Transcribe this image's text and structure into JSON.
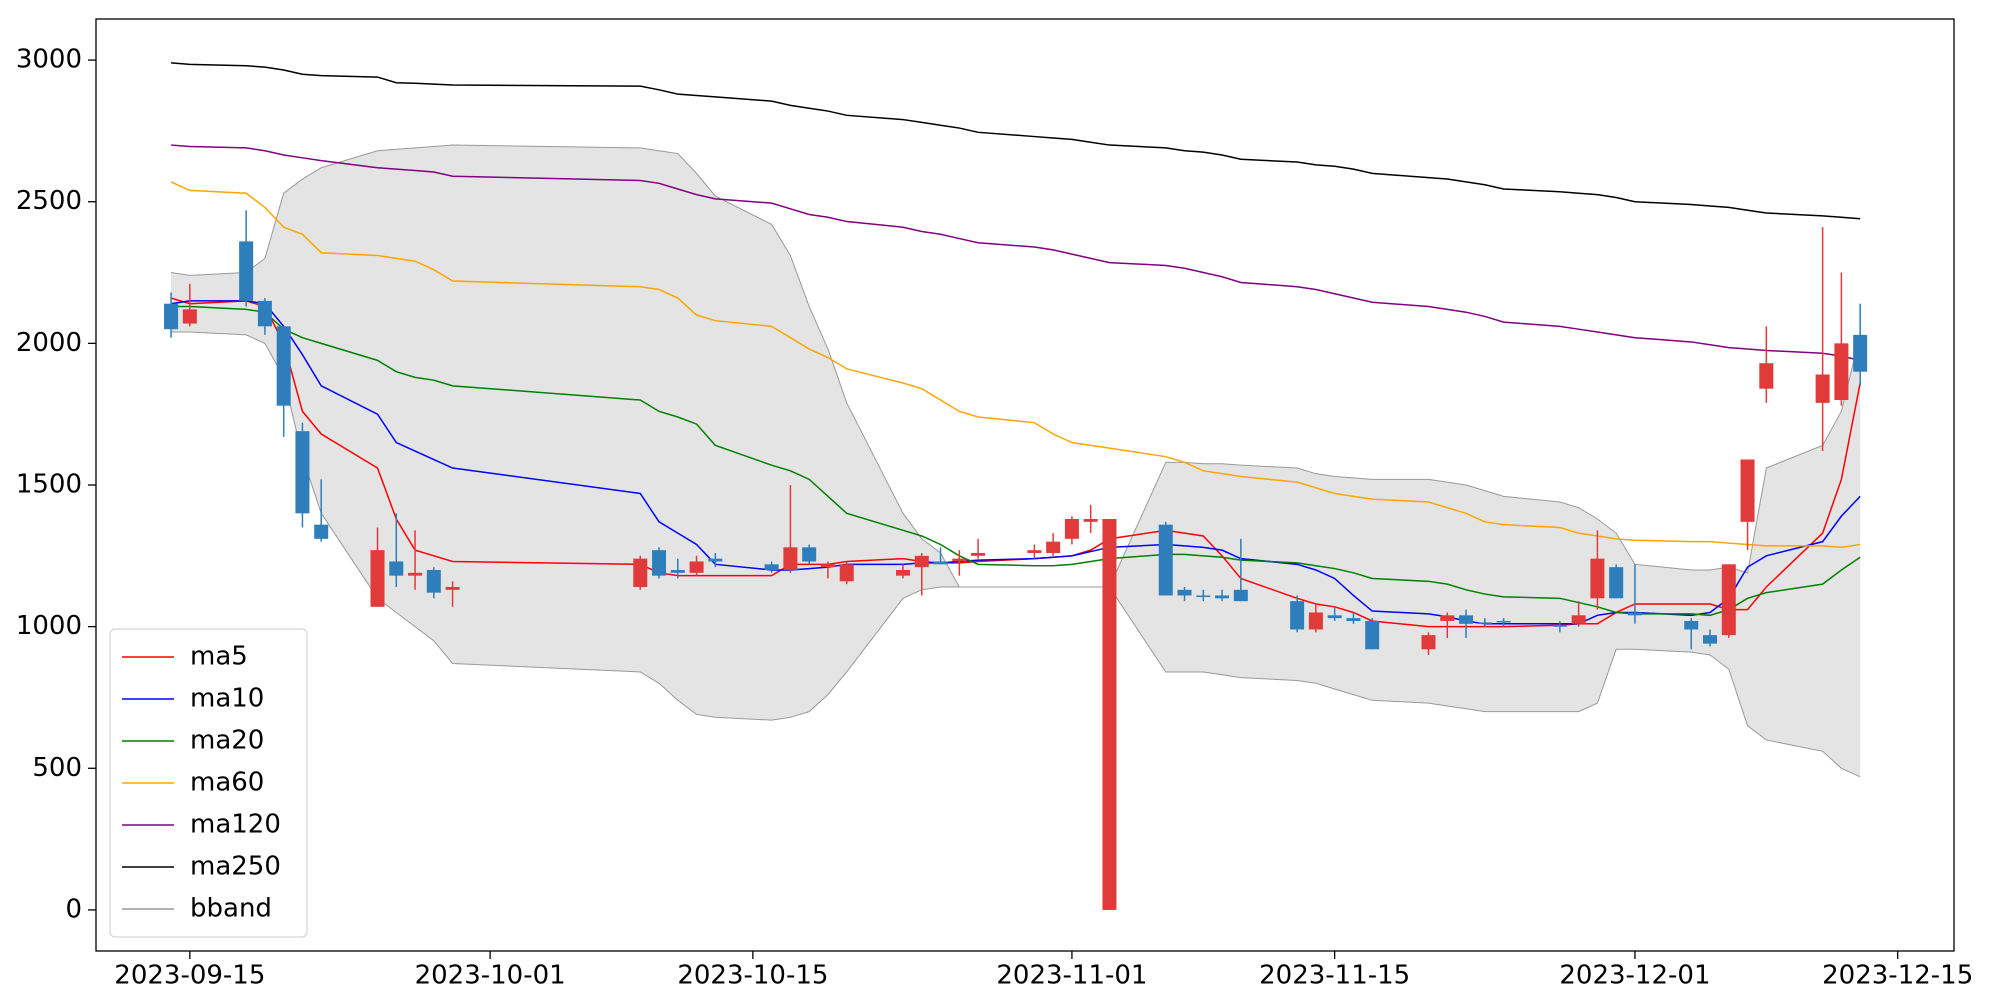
{
  "chart_data": {
    "type": "candlestick",
    "x": [
      "2023-09-14",
      "2023-09-15",
      "2023-09-18",
      "2023-09-19",
      "2023-09-20",
      "2023-09-21",
      "2023-09-22",
      "2023-09-25",
      "2023-09-26",
      "2023-09-27",
      "2023-09-28",
      "2023-09-29",
      "2023-10-09",
      "2023-10-10",
      "2023-10-11",
      "2023-10-12",
      "2023-10-13",
      "2023-10-16",
      "2023-10-17",
      "2023-10-18",
      "2023-10-19",
      "2023-10-20",
      "2023-10-23",
      "2023-10-24",
      "2023-10-25",
      "2023-10-26",
      "2023-10-27",
      "2023-10-30",
      "2023-10-31",
      "2023-11-01",
      "2023-11-02",
      "2023-11-03",
      "2023-11-06",
      "2023-11-07",
      "2023-11-08",
      "2023-11-09",
      "2023-11-10",
      "2023-11-13",
      "2023-11-14",
      "2023-11-15",
      "2023-11-16",
      "2023-11-17",
      "2023-11-20",
      "2023-11-21",
      "2023-11-22",
      "2023-11-23",
      "2023-11-24",
      "2023-11-27",
      "2023-11-28",
      "2023-11-29",
      "2023-11-30",
      "2023-12-01",
      "2023-12-04",
      "2023-12-05",
      "2023-12-06",
      "2023-12-07",
      "2023-12-08",
      "2023-12-11",
      "2023-12-12",
      "2023-12-13"
    ],
    "open": [
      2140,
      2070,
      2360,
      2150,
      2060,
      1690,
      1360,
      1070,
      1230,
      1180,
      1200,
      1130,
      1140,
      1270,
      1200,
      1190,
      1240,
      1220,
      1200,
      1280,
      1210,
      1160,
      1180,
      1210,
      1230,
      1230,
      1250,
      1260,
      1260,
      1310,
      1370,
      0,
      1360,
      1130,
      1110,
      1110,
      1130,
      1090,
      990,
      1040,
      1030,
      1020,
      920,
      1020,
      1040,
      1015,
      1020,
      1005,
      1010,
      1100,
      1210,
      1050,
      1020,
      970,
      970,
      1370,
      1840,
      1790,
      1800,
      2030
    ],
    "high": [
      2180,
      2210,
      2470,
      2160,
      2060,
      1720,
      1520,
      1350,
      1400,
      1340,
      1210,
      1160,
      1250,
      1280,
      1240,
      1250,
      1260,
      1230,
      1500,
      1290,
      1230,
      1230,
      1220,
      1260,
      1280,
      1270,
      1310,
      1290,
      1330,
      1390,
      1430,
      1380,
      1370,
      1140,
      1130,
      1130,
      1310,
      1110,
      1080,
      1070,
      1050,
      1030,
      980,
      1050,
      1060,
      1030,
      1030,
      1020,
      1090,
      1340,
      1220,
      1220,
      1030,
      990,
      1220,
      1590,
      2060,
      2410,
      2250,
      2140
    ],
    "low": [
      2020,
      2060,
      2130,
      2030,
      1670,
      1350,
      1300,
      1070,
      1140,
      1130,
      1100,
      1070,
      1130,
      1170,
      1170,
      1180,
      1210,
      1190,
      1190,
      1220,
      1170,
      1150,
      1170,
      1110,
      1220,
      1180,
      1240,
      1240,
      1250,
      1290,
      1330,
      0,
      1110,
      1090,
      1090,
      1090,
      1090,
      980,
      980,
      1020,
      1010,
      920,
      900,
      960,
      960,
      1000,
      1000,
      980,
      1000,
      1060,
      1100,
      1010,
      920,
      930,
      960,
      1270,
      1790,
      1620,
      1780,
      1850
    ],
    "close": [
      2050,
      2120,
      2150,
      2060,
      1780,
      1400,
      1310,
      1270,
      1180,
      1190,
      1120,
      1140,
      1240,
      1180,
      1190,
      1230,
      1230,
      1200,
      1280,
      1230,
      1220,
      1220,
      1200,
      1250,
      1220,
      1240,
      1260,
      1270,
      1300,
      1380,
      1380,
      1380,
      1110,
      1110,
      1105,
      1100,
      1090,
      990,
      1050,
      1030,
      1020,
      920,
      970,
      1040,
      1010,
      1010,
      1015,
      1000,
      1040,
      1240,
      1100,
      1040,
      990,
      940,
      1220,
      1590,
      1930,
      1890,
      2000,
      1900
    ],
    "up_color": "#e03a3a",
    "down_color": "#2e7ebc",
    "series": [
      {
        "name": "ma5",
        "color": "#ff0000",
        "values": [
          2160,
          2140,
          2150,
          2130,
          2000,
          1760,
          1680,
          1560,
          1380,
          1270,
          1250,
          1230,
          1220,
          1190,
          1180,
          1180,
          1180,
          1180,
          1220,
          1220,
          1220,
          1230,
          1240,
          1230,
          1225,
          1225,
          1230,
          1240,
          1245,
          1250,
          1270,
          1310,
          1340,
          1330,
          1320,
          1250,
          1170,
          1100,
          1080,
          1070,
          1050,
          1020,
          1000,
          1000,
          1000,
          1000,
          1000,
          1005,
          1010,
          1010,
          1050,
          1080,
          1080,
          1080,
          1060,
          1060,
          1140,
          1330,
          1520,
          1860
        ]
      },
      {
        "name": "ma10",
        "color": "#0000ff",
        "values": [
          2140,
          2150,
          2150,
          2140,
          2060,
          1960,
          1850,
          1750,
          1650,
          1620,
          1590,
          1560,
          1470,
          1370,
          1330,
          1290,
          1220,
          1200,
          1200,
          1205,
          1210,
          1220,
          1220,
          1225,
          1225,
          1230,
          1235,
          1240,
          1245,
          1250,
          1265,
          1280,
          1290,
          1285,
          1280,
          1270,
          1240,
          1220,
          1200,
          1170,
          1110,
          1055,
          1045,
          1035,
          1020,
          1010,
          1010,
          1010,
          1010,
          1040,
          1050,
          1050,
          1040,
          1050,
          1100,
          1210,
          1250,
          1300,
          1390,
          1460
        ]
      },
      {
        "name": "ma20",
        "color": "#008000",
        "values": [
          2130,
          2130,
          2120,
          2110,
          2050,
          2020,
          2000,
          1940,
          1900,
          1880,
          1870,
          1850,
          1800,
          1760,
          1740,
          1715,
          1640,
          1570,
          1550,
          1520,
          1460,
          1400,
          1340,
          1320,
          1290,
          1250,
          1220,
          1215,
          1215,
          1220,
          1230,
          1240,
          1255,
          1255,
          1250,
          1245,
          1235,
          1225,
          1215,
          1205,
          1190,
          1170,
          1160,
          1150,
          1130,
          1115,
          1105,
          1100,
          1085,
          1070,
          1050,
          1045,
          1045,
          1040,
          1060,
          1100,
          1120,
          1150,
          1200,
          1245
        ]
      },
      {
        "name": "ma60",
        "color": "#ffa500",
        "values": [
          2570,
          2540,
          2530,
          2480,
          2410,
          2385,
          2320,
          2310,
          2300,
          2290,
          2260,
          2220,
          2200,
          2190,
          2160,
          2100,
          2080,
          2060,
          2020,
          1980,
          1950,
          1910,
          1860,
          1840,
          1800,
          1760,
          1740,
          1720,
          1680,
          1650,
          1640,
          1630,
          1600,
          1580,
          1550,
          1540,
          1530,
          1510,
          1490,
          1470,
          1460,
          1450,
          1440,
          1420,
          1400,
          1370,
          1360,
          1350,
          1330,
          1320,
          1310,
          1305,
          1300,
          1300,
          1295,
          1290,
          1285,
          1285,
          1280,
          1290
        ]
      },
      {
        "name": "ma120",
        "color": "#800080",
        "values": [
          2700,
          2695,
          2690,
          2680,
          2665,
          2655,
          2645,
          2620,
          2615,
          2610,
          2605,
          2590,
          2575,
          2565,
          2545,
          2525,
          2510,
          2495,
          2475,
          2455,
          2445,
          2430,
          2410,
          2395,
          2385,
          2370,
          2355,
          2340,
          2330,
          2315,
          2300,
          2285,
          2275,
          2265,
          2250,
          2235,
          2215,
          2200,
          2190,
          2175,
          2160,
          2145,
          2130,
          2120,
          2110,
          2095,
          2075,
          2060,
          2050,
          2040,
          2030,
          2020,
          2005,
          1995,
          1985,
          1980,
          1975,
          1965,
          1955,
          1940
        ]
      },
      {
        "name": "ma250",
        "color": "#000000",
        "values": [
          2990,
          2985,
          2980,
          2975,
          2965,
          2950,
          2945,
          2940,
          2920,
          2918,
          2915,
          2912,
          2908,
          2895,
          2880,
          2875,
          2870,
          2855,
          2840,
          2830,
          2820,
          2805,
          2790,
          2780,
          2770,
          2760,
          2745,
          2730,
          2725,
          2720,
          2710,
          2700,
          2690,
          2680,
          2675,
          2665,
          2650,
          2640,
          2630,
          2625,
          2615,
          2600,
          2585,
          2580,
          2570,
          2560,
          2545,
          2535,
          2530,
          2525,
          2515,
          2500,
          2490,
          2485,
          2480,
          2470,
          2460,
          2450,
          2445,
          2440
        ]
      }
    ],
    "bband": {
      "name": "bband",
      "color": "#999999",
      "fill": "#e4e4e4",
      "upper": [
        2250,
        2240,
        2250,
        2300,
        2530,
        2580,
        2620,
        2680,
        2685,
        2690,
        2695,
        2700,
        2690,
        2680,
        2670,
        2600,
        2520,
        2420,
        2310,
        2130,
        1980,
        1790,
        1400,
        1310,
        1260,
        1140,
        1140,
        1140,
        1140,
        1140,
        1140,
        1140,
        1580,
        1580,
        1575,
        1575,
        1570,
        1560,
        1540,
        1530,
        1525,
        1520,
        1520,
        1510,
        1500,
        1480,
        1460,
        1440,
        1420,
        1380,
        1330,
        1220,
        1200,
        1200,
        1210,
        1190,
        1560,
        1640,
        1760,
        2030
      ],
      "lower": [
        2040,
        2040,
        2030,
        2000,
        1880,
        1600,
        1400,
        1100,
        1050,
        1000,
        950,
        870,
        840,
        800,
        740,
        690,
        680,
        670,
        680,
        700,
        760,
        840,
        1100,
        1130,
        1140,
        1140,
        1140,
        1140,
        1140,
        1140,
        1140,
        1140,
        840,
        840,
        840,
        830,
        820,
        810,
        800,
        780,
        760,
        740,
        730,
        720,
        710,
        700,
        700,
        700,
        700,
        730,
        920,
        920,
        910,
        900,
        850,
        650,
        600,
        560,
        500,
        470
      ]
    },
    "xlim": [
      "2023-09-10",
      "2023-12-18"
    ],
    "xticks": [
      "2023-09-15",
      "2023-10-01",
      "2023-10-15",
      "2023-11-01",
      "2023-11-15",
      "2023-12-01",
      "2023-12-15"
    ],
    "ylim": [
      -145,
      3145
    ],
    "yticks": [
      0,
      500,
      1000,
      1500,
      2000,
      2500,
      3000
    ],
    "grid": false,
    "legend": "lower left"
  }
}
